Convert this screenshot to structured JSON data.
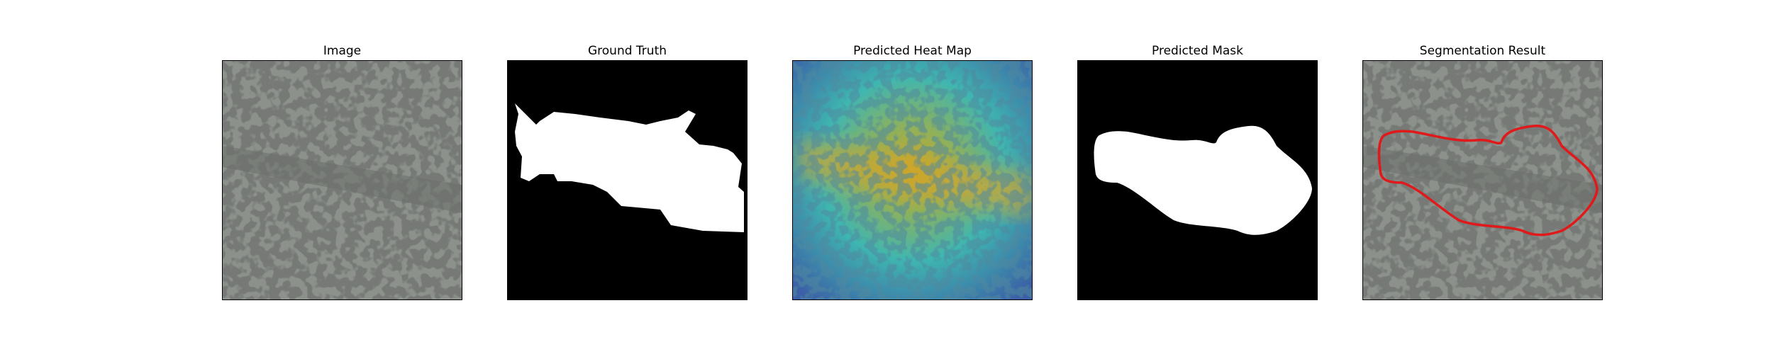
{
  "panels": [
    {
      "title": "Image"
    },
    {
      "title": "Ground Truth"
    },
    {
      "title": "Predicted Heat Map"
    },
    {
      "title": "Predicted Mask"
    },
    {
      "title": "Segmentation Result"
    }
  ],
  "colors": {
    "texture_base": "#8c918b",
    "texture_spot": "#2f322f",
    "mask_fg": "#ffffff",
    "mask_bg": "#000000",
    "contour": "#e0191b",
    "heat_low": "#3b5fa6",
    "heat_mid": "#3fb6b0",
    "heat_high": "#c8a82a"
  }
}
